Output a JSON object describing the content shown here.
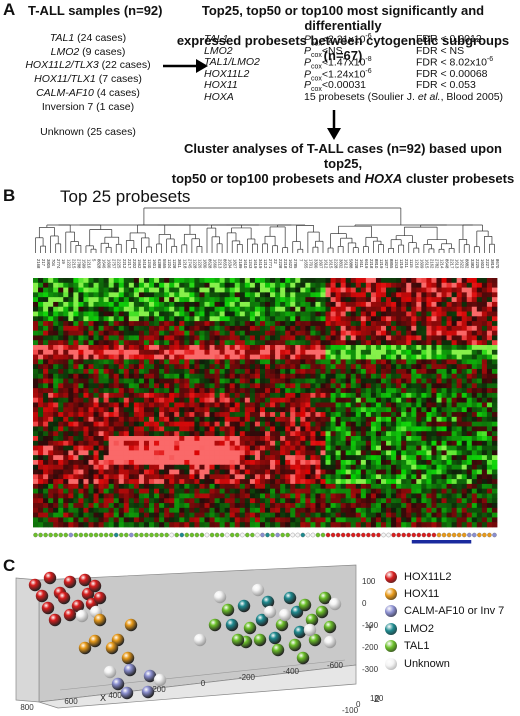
{
  "panelA": {
    "label": "A",
    "samples_title": "T-ALL samples (n=92)",
    "groups": [
      {
        "name": "TAL1",
        "count": " (24 cases)",
        "italic": true
      },
      {
        "name": "LMO2",
        "count": " (9 cases)",
        "italic": true
      },
      {
        "name": "HOX11L2/TLX3",
        "count": " (22 cases)",
        "italic": true
      },
      {
        "name": "HOX11/TLX1",
        "count": " (7 cases)",
        "italic": true
      },
      {
        "name": "CALM-AF10",
        "count": " (4 cases)",
        "italic": true
      },
      {
        "name": "Inversion 7",
        "count": " (1 case)",
        "italic": false
      },
      {
        "name": "Unknown",
        "count": " (25 cases)",
        "italic": false
      }
    ],
    "top_title_line1": "Top25, top50 or top100 most significantly and differentially",
    "top_title_line2": "expressed probesets between cytogenetic subgroups (n=67)",
    "stats": [
      {
        "gene": "TAL1",
        "p": "<2.21x10",
        "exp": "-6",
        "fdr": "FDR < 0.0012"
      },
      {
        "gene": "LMO2",
        "p": "<NS",
        "exp": "",
        "fdr": "FDR < NS"
      },
      {
        "gene": "TAL1/LMO2",
        "p": "<1.47x10",
        "exp": "-8",
        "fdr": "FDR < 8.02x10",
        "fdr_exp": "-6"
      },
      {
        "gene": "HOX11L2",
        "p": "<1.24x10",
        "exp": "-6",
        "fdr": "FDR < 0.00068"
      },
      {
        "gene": "HOX11",
        "p": "<0.00031",
        "exp": "",
        "fdr": "FDR < 0.053"
      }
    ],
    "p_label": "P",
    "p_sub": "cox",
    "hoxa_gene": "HOXA",
    "hoxa_text_pre": "15 probesets (Soulier J. ",
    "hoxa_text_etal": "et al.",
    "hoxa_text_post": ", Blood 2005)",
    "cluster_line1": "Cluster analyses of T-ALL cases (n=92) based upon top25,",
    "cluster_line2_pre": "top50 or top100 probesets and ",
    "cluster_line2_it": "HOXA",
    "cluster_line2_post": " cluster probesets"
  },
  "panelB": {
    "label": "B",
    "title": "Top 25 probesets",
    "sample_ids": [
      "2168",
      "217",
      "3805",
      "704",
      "2774",
      "19",
      "1222",
      "2215",
      "2788",
      "1599",
      "1210",
      "5",
      "8828",
      "1646",
      "1600",
      "2757",
      "2225",
      "2212",
      "2217",
      "2202",
      "1562",
      "3418",
      "1240",
      "1601",
      "6288",
      "5555",
      "1224",
      "1228",
      "3811",
      "1218",
      "2745",
      "1228",
      "1226",
      "1830",
      "8628",
      "1660",
      "2213",
      "8653",
      "1634",
      "1827",
      "2189",
      "1610",
      "1243",
      "1619",
      "3419",
      "1212",
      "2771",
      "22",
      "2228",
      "2218",
      "1622",
      "2785",
      "7",
      "1655",
      "1701",
      "3300",
      "1607",
      "1612",
      "1615",
      "2228",
      "3832",
      "1612",
      "5888",
      "2228",
      "1611",
      "6619",
      "2218",
      "8810",
      "1219",
      "1827",
      "8855",
      "1243",
      "1219",
      "2211",
      "1115",
      "1210",
      "1609",
      "1615",
      "2162",
      "2782",
      "1214",
      "8648",
      "2217",
      "1613",
      "1622",
      "8882",
      "3382",
      "2225",
      "1603",
      "2227",
      "3819",
      "8670"
    ]
  },
  "panelC": {
    "label": "C",
    "legend": [
      {
        "name": "HOX11L2",
        "color": "#d81e1e"
      },
      {
        "name": "HOX11",
        "color": "#e89a1a"
      },
      {
        "name": "CALM-AF10 or Inv 7",
        "color": "#8b8fd0"
      },
      {
        "name": "LMO2",
        "color": "#1f8a8f"
      },
      {
        "name": "TAL1",
        "color": "#6cc02a"
      },
      {
        "name": "Unknown",
        "color": "#f4f4f4"
      }
    ],
    "x_axis_label": "X",
    "y_axis_label": "Y",
    "z_axis_label": "Z",
    "x_ticks": [
      "800",
      "600",
      "400",
      "200",
      "0",
      "-200",
      "-400",
      "-600"
    ],
    "y_ticks": [
      "100",
      "0",
      "-100",
      "-200",
      "-300"
    ],
    "z_ticks": [
      "-100",
      "0",
      "100"
    ]
  }
}
